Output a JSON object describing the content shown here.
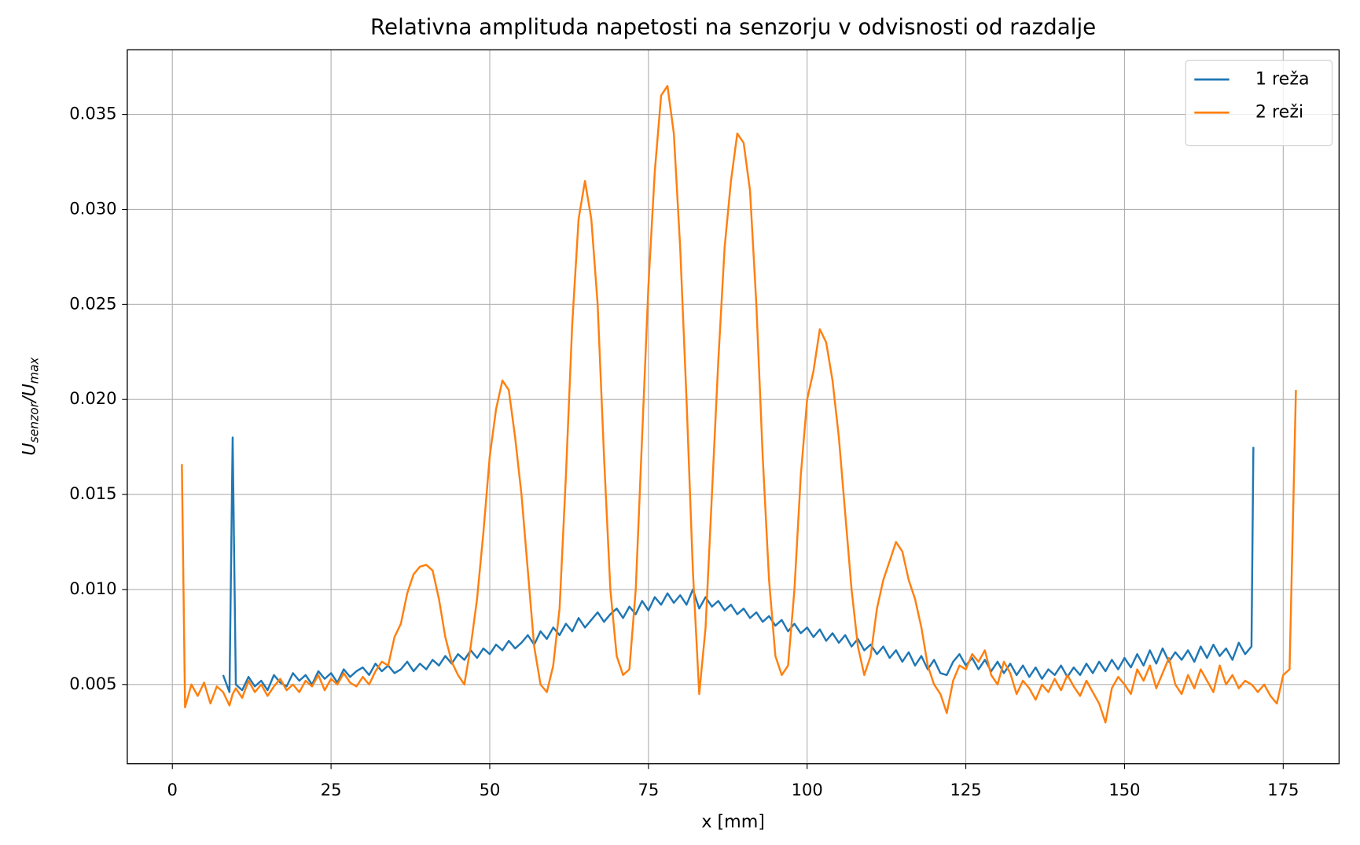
{
  "chart_data": {
    "type": "line",
    "title": "Relativna amplituda napetosti na senzorju v odvisnosti od razdalje",
    "x_label": "x [mm]",
    "y_label_parts": [
      "U",
      "senzor",
      "/U",
      "max"
    ],
    "x": [
      1.5,
      2,
      3,
      4,
      5,
      6,
      7,
      8,
      9,
      9.5,
      10,
      11,
      12,
      13,
      14,
      15,
      16,
      17,
      18,
      19,
      20,
      21,
      22,
      23,
      24,
      25,
      26,
      27,
      28,
      29,
      30,
      31,
      32,
      33,
      34,
      35,
      36,
      37,
      38,
      39,
      40,
      41,
      42,
      43,
      44,
      45,
      46,
      47,
      48,
      49,
      50,
      51,
      52,
      53,
      54,
      55,
      56,
      57,
      58,
      59,
      60,
      61,
      62,
      63,
      64,
      65,
      66,
      67,
      68,
      69,
      70,
      71,
      72,
      73,
      74,
      75,
      76,
      77,
      78,
      79,
      80,
      81,
      82,
      83,
      84,
      85,
      86,
      87,
      88,
      89,
      90,
      91,
      92,
      93,
      94,
      95,
      96,
      97,
      98,
      99,
      100,
      101,
      102,
      103,
      104,
      105,
      106,
      107,
      108,
      109,
      110,
      111,
      112,
      113,
      114,
      115,
      116,
      117,
      118,
      119,
      120,
      121,
      122,
      123,
      124,
      125,
      126,
      127,
      128,
      129,
      130,
      131,
      132,
      133,
      134,
      135,
      136,
      137,
      138,
      139,
      140,
      141,
      142,
      143,
      144,
      145,
      146,
      147,
      148,
      149,
      150,
      151,
      152,
      153,
      154,
      155,
      156,
      157,
      158,
      159,
      160,
      161,
      162,
      163,
      164,
      165,
      166,
      167,
      168,
      169,
      170,
      170.3,
      171,
      172,
      173,
      174,
      175,
      176,
      177
    ],
    "series": [
      {
        "name": "1 reža",
        "color": "#1f77b4",
        "values": [
          null,
          null,
          null,
          null,
          null,
          null,
          null,
          0.0055,
          0.0046,
          0.018,
          0.005,
          0.0047,
          0.0054,
          0.0049,
          0.0052,
          0.0047,
          0.0055,
          0.0051,
          0.0049,
          0.0056,
          0.0052,
          0.0055,
          0.005,
          0.0057,
          0.0053,
          0.0056,
          0.0051,
          0.0058,
          0.0054,
          0.0057,
          0.0059,
          0.0055,
          0.0061,
          0.0057,
          0.006,
          0.0056,
          0.0058,
          0.0062,
          0.0057,
          0.0061,
          0.0058,
          0.0063,
          0.006,
          0.0065,
          0.0061,
          0.0066,
          0.0063,
          0.0068,
          0.0064,
          0.0069,
          0.0066,
          0.0071,
          0.0068,
          0.0073,
          0.0069,
          0.0072,
          0.0076,
          0.0071,
          0.0078,
          0.0074,
          0.008,
          0.0076,
          0.0082,
          0.0078,
          0.0085,
          0.008,
          0.0084,
          0.0088,
          0.0083,
          0.0087,
          0.009,
          0.0085,
          0.0091,
          0.0087,
          0.0094,
          0.0089,
          0.0096,
          0.0092,
          0.0098,
          0.0093,
          0.0097,
          0.0092,
          0.01,
          0.009,
          0.0096,
          0.0091,
          0.0094,
          0.0089,
          0.0092,
          0.0087,
          0.009,
          0.0085,
          0.0088,
          0.0083,
          0.0086,
          0.0081,
          0.0084,
          0.0078,
          0.0082,
          0.0077,
          0.008,
          0.0075,
          0.0079,
          0.0073,
          0.0077,
          0.0072,
          0.0076,
          0.007,
          0.0074,
          0.0068,
          0.0071,
          0.0066,
          0.007,
          0.0064,
          0.0068,
          0.0062,
          0.0067,
          0.006,
          0.0065,
          0.0058,
          0.0063,
          0.0056,
          0.0055,
          0.0062,
          0.0066,
          0.006,
          0.0064,
          0.0058,
          0.0063,
          0.0057,
          0.0062,
          0.0056,
          0.0061,
          0.0055,
          0.006,
          0.0054,
          0.0059,
          0.0053,
          0.0058,
          0.0055,
          0.006,
          0.0054,
          0.0059,
          0.0055,
          0.0061,
          0.0056,
          0.0062,
          0.0057,
          0.0063,
          0.0058,
          0.0064,
          0.0059,
          0.0066,
          0.006,
          0.0068,
          0.0061,
          0.0069,
          0.0062,
          0.0067,
          0.0063,
          0.0068,
          0.0062,
          0.007,
          0.0064,
          0.0071,
          0.0065,
          0.0069,
          0.0063,
          0.0072,
          0.0066,
          0.007,
          0.0175,
          null,
          null,
          null,
          null,
          null,
          null,
          null
        ]
      },
      {
        "name": "2 reži",
        "color": "#ff7f0e",
        "values": [
          0.0166,
          0.0038,
          0.005,
          0.0044,
          0.0051,
          0.004,
          0.0049,
          0.0046,
          0.0039,
          0.0045,
          0.0048,
          0.0043,
          0.0052,
          0.0046,
          0.005,
          0.0044,
          0.0049,
          0.0053,
          0.0047,
          0.005,
          0.0046,
          0.0052,
          0.0049,
          0.0055,
          0.0047,
          0.0053,
          0.005,
          0.0056,
          0.0051,
          0.0049,
          0.0054,
          0.005,
          0.0057,
          0.0062,
          0.006,
          0.0075,
          0.0082,
          0.0098,
          0.0108,
          0.0112,
          0.0113,
          0.011,
          0.0095,
          0.0075,
          0.0062,
          0.0055,
          0.005,
          0.007,
          0.0095,
          0.013,
          0.017,
          0.0195,
          0.021,
          0.0205,
          0.018,
          0.015,
          0.011,
          0.007,
          0.005,
          0.0046,
          0.006,
          0.009,
          0.016,
          0.024,
          0.0295,
          0.0315,
          0.0295,
          0.025,
          0.017,
          0.01,
          0.0065,
          0.0055,
          0.0058,
          0.01,
          0.018,
          0.026,
          0.032,
          0.036,
          0.0365,
          0.034,
          0.028,
          0.02,
          0.011,
          0.0045,
          0.008,
          0.015,
          0.022,
          0.028,
          0.0315,
          0.034,
          0.0335,
          0.031,
          0.025,
          0.017,
          0.0105,
          0.0065,
          0.0055,
          0.006,
          0.01,
          0.016,
          0.02,
          0.0215,
          0.0237,
          0.023,
          0.021,
          0.018,
          0.014,
          0.01,
          0.007,
          0.0055,
          0.0065,
          0.009,
          0.0105,
          0.0115,
          0.0125,
          0.012,
          0.0105,
          0.0095,
          0.008,
          0.006,
          0.005,
          0.0045,
          0.0035,
          0.0052,
          0.006,
          0.0058,
          0.0066,
          0.0062,
          0.0068,
          0.0055,
          0.005,
          0.0062,
          0.0056,
          0.0045,
          0.0052,
          0.0048,
          0.0042,
          0.005,
          0.0046,
          0.0053,
          0.0047,
          0.0055,
          0.0049,
          0.0044,
          0.0052,
          0.0046,
          0.004,
          0.003,
          0.0048,
          0.0054,
          0.005,
          0.0045,
          0.0058,
          0.0052,
          0.006,
          0.0048,
          0.0056,
          0.0064,
          0.005,
          0.0045,
          0.0055,
          0.0048,
          0.0058,
          0.0052,
          0.0046,
          0.006,
          0.005,
          0.0055,
          0.0048,
          0.0052,
          0.005,
          0.0049,
          0.0046,
          0.005,
          0.0044,
          0.004,
          0.0055,
          0.0058,
          0.0205
        ]
      }
    ],
    "xlim": [
      -7.1,
      183.8
    ],
    "xticks": [
      0,
      25,
      50,
      75,
      100,
      125,
      150,
      175
    ],
    "ylim": [
      0.00083,
      0.0384
    ],
    "yticks": [
      0.005,
      {
        "value": 0.01,
        "label": "0.010"
      },
      0.015,
      {
        "value": 0.02,
        "label": "0.020"
      },
      0.025,
      {
        "value": 0.03,
        "label": "0.030"
      },
      0.035
    ],
    "grid": true,
    "legend": "upper right"
  }
}
